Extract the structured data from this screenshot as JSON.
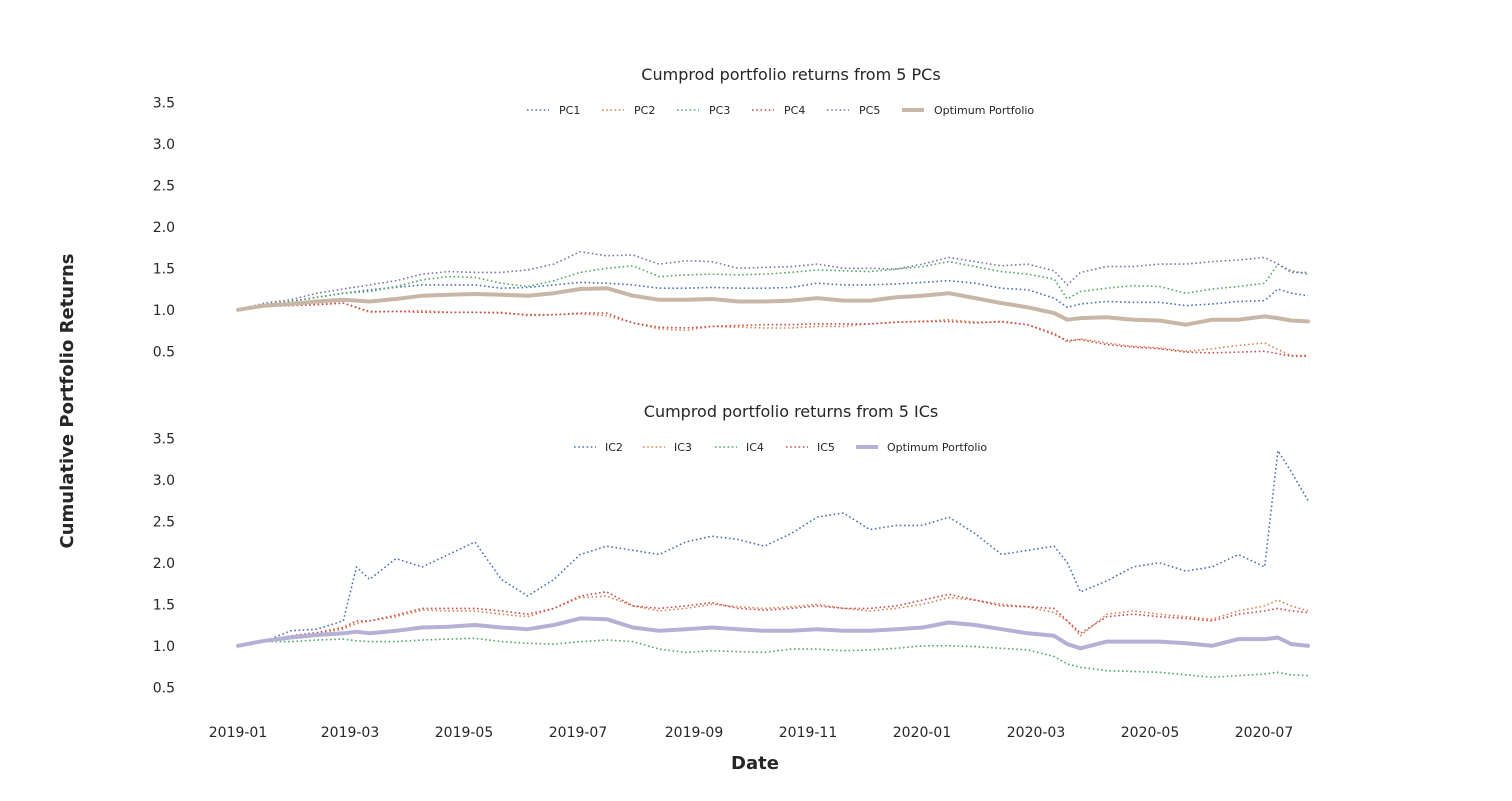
{
  "figure": {
    "ylabel": "Cumulative Portfolio Returns",
    "xlabel": "Date"
  },
  "chart_data": [
    {
      "type": "line",
      "title": "Cumprod portfolio returns from 5 PCs",
      "xlabel": "Date",
      "ylabel": "Cumulative Portfolio Returns",
      "ylim": [
        0.25,
        3.6
      ],
      "yticks": [
        0.5,
        1.0,
        1.5,
        2.0,
        2.5,
        3.0,
        3.5
      ],
      "xlim": [
        "2018-12-01",
        "2020-07-31"
      ],
      "xticks": [
        "2019-01",
        "2019-03",
        "2019-05",
        "2019-07",
        "2019-09",
        "2019-11",
        "2020-01",
        "2020-03",
        "2020-05",
        "2020-07"
      ],
      "grid": false,
      "legend_position": "top-center",
      "x": [
        "2019-01-02",
        "2019-01-16",
        "2019-01-30",
        "2019-02-13",
        "2019-02-27",
        "2019-03-13",
        "2019-03-27",
        "2019-04-10",
        "2019-04-24",
        "2019-05-08",
        "2019-05-22",
        "2019-06-05",
        "2019-06-19",
        "2019-07-03",
        "2019-07-17",
        "2019-07-31",
        "2019-08-14",
        "2019-08-28",
        "2019-09-11",
        "2019-09-25",
        "2019-10-09",
        "2019-10-23",
        "2019-11-06",
        "2019-11-20",
        "2019-12-04",
        "2019-12-18",
        "2020-01-01",
        "2020-01-15",
        "2020-01-29",
        "2020-02-12",
        "2020-02-26",
        "2020-03-11",
        "2020-03-18",
        "2020-03-25",
        "2020-04-08",
        "2020-04-22",
        "2020-05-06",
        "2020-05-20",
        "2020-06-03",
        "2020-06-17",
        "2020-07-01",
        "2020-07-08",
        "2020-07-15",
        "2020-07-24"
      ],
      "series": [
        {
          "name": "PC1",
          "style": "dotted",
          "color": "#4c72b0",
          "values": [
            1.0,
            1.06,
            1.1,
            1.15,
            1.2,
            1.24,
            1.27,
            1.3,
            1.3,
            1.3,
            1.26,
            1.27,
            1.3,
            1.33,
            1.32,
            1.3,
            1.26,
            1.26,
            1.27,
            1.26,
            1.26,
            1.27,
            1.32,
            1.3,
            1.3,
            1.31,
            1.33,
            1.35,
            1.32,
            1.26,
            1.24,
            1.14,
            1.03,
            1.07,
            1.1,
            1.09,
            1.09,
            1.05,
            1.07,
            1.1,
            1.11,
            1.25,
            1.2,
            1.17
          ]
        },
        {
          "name": "PC2",
          "style": "dotted",
          "color": "#dd8452",
          "values": [
            1.0,
            1.04,
            1.05,
            1.07,
            1.08,
            0.97,
            0.98,
            0.99,
            0.97,
            0.97,
            0.97,
            0.93,
            0.94,
            0.95,
            0.93,
            0.84,
            0.77,
            0.75,
            0.8,
            0.79,
            0.78,
            0.78,
            0.8,
            0.8,
            0.83,
            0.85,
            0.86,
            0.88,
            0.85,
            0.85,
            0.82,
            0.72,
            0.61,
            0.65,
            0.6,
            0.56,
            0.54,
            0.5,
            0.53,
            0.57,
            0.6,
            0.52,
            0.45,
            0.45
          ]
        },
        {
          "name": "PC3",
          "style": "dotted",
          "color": "#55a868",
          "values": [
            1.0,
            1.06,
            1.1,
            1.15,
            1.2,
            1.22,
            1.28,
            1.36,
            1.4,
            1.39,
            1.32,
            1.28,
            1.35,
            1.45,
            1.5,
            1.53,
            1.4,
            1.42,
            1.43,
            1.42,
            1.43,
            1.45,
            1.48,
            1.47,
            1.46,
            1.49,
            1.52,
            1.58,
            1.52,
            1.46,
            1.43,
            1.37,
            1.13,
            1.22,
            1.26,
            1.29,
            1.28,
            1.2,
            1.25,
            1.28,
            1.32,
            1.55,
            1.47,
            1.43
          ]
        },
        {
          "name": "PC4",
          "style": "dotted",
          "color": "#c44e52",
          "values": [
            1.0,
            1.04,
            1.05,
            1.06,
            1.08,
            0.98,
            0.98,
            0.97,
            0.97,
            0.97,
            0.96,
            0.94,
            0.94,
            0.96,
            0.96,
            0.84,
            0.79,
            0.78,
            0.8,
            0.81,
            0.82,
            0.82,
            0.83,
            0.83,
            0.83,
            0.85,
            0.86,
            0.86,
            0.84,
            0.86,
            0.82,
            0.7,
            0.63,
            0.64,
            0.58,
            0.55,
            0.53,
            0.49,
            0.48,
            0.49,
            0.5,
            0.47,
            0.44,
            0.44
          ]
        },
        {
          "name": "PC5",
          "style": "dotted",
          "color": "#8172b3",
          "values": [
            1.0,
            1.08,
            1.12,
            1.2,
            1.25,
            1.3,
            1.35,
            1.43,
            1.46,
            1.45,
            1.45,
            1.48,
            1.55,
            1.7,
            1.65,
            1.66,
            1.55,
            1.59,
            1.58,
            1.5,
            1.51,
            1.52,
            1.55,
            1.5,
            1.5,
            1.49,
            1.55,
            1.63,
            1.58,
            1.53,
            1.55,
            1.47,
            1.3,
            1.45,
            1.52,
            1.52,
            1.55,
            1.55,
            1.58,
            1.6,
            1.63,
            1.55,
            1.45,
            1.45
          ]
        },
        {
          "name": "Optimum Portfolio",
          "style": "solid-thick",
          "color": "#c8b7a6",
          "values": [
            1.0,
            1.05,
            1.07,
            1.1,
            1.12,
            1.1,
            1.13,
            1.17,
            1.18,
            1.19,
            1.18,
            1.17,
            1.2,
            1.25,
            1.26,
            1.17,
            1.12,
            1.12,
            1.13,
            1.1,
            1.1,
            1.11,
            1.14,
            1.11,
            1.11,
            1.15,
            1.17,
            1.2,
            1.14,
            1.08,
            1.03,
            0.96,
            0.88,
            0.9,
            0.91,
            0.88,
            0.87,
            0.82,
            0.88,
            0.88,
            0.92,
            0.9,
            0.87,
            0.86
          ]
        }
      ]
    },
    {
      "type": "line",
      "title": "Cumprod portfolio returns from 5 ICs",
      "xlabel": "Date",
      "ylabel": "Cumulative Portfolio Returns",
      "ylim": [
        0.25,
        3.6
      ],
      "yticks": [
        0.5,
        1.0,
        1.5,
        2.0,
        2.5,
        3.0,
        3.5
      ],
      "xlim": [
        "2018-12-01",
        "2020-07-31"
      ],
      "xticks": [
        "2019-01",
        "2019-03",
        "2019-05",
        "2019-07",
        "2019-09",
        "2019-11",
        "2020-01",
        "2020-03",
        "2020-05",
        "2020-07"
      ],
      "grid": false,
      "legend_position": "top-center",
      "x": [
        "2019-01-02",
        "2019-01-16",
        "2019-01-30",
        "2019-02-13",
        "2019-02-27",
        "2019-03-06",
        "2019-03-13",
        "2019-03-27",
        "2019-04-10",
        "2019-04-24",
        "2019-05-08",
        "2019-05-22",
        "2019-06-05",
        "2019-06-19",
        "2019-07-03",
        "2019-07-17",
        "2019-07-31",
        "2019-08-14",
        "2019-08-28",
        "2019-09-11",
        "2019-09-25",
        "2019-10-09",
        "2019-10-23",
        "2019-11-06",
        "2019-11-20",
        "2019-12-04",
        "2019-12-18",
        "2020-01-01",
        "2020-01-15",
        "2020-01-29",
        "2020-02-12",
        "2020-02-26",
        "2020-03-11",
        "2020-03-18",
        "2020-03-25",
        "2020-04-08",
        "2020-04-22",
        "2020-05-06",
        "2020-05-20",
        "2020-06-03",
        "2020-06-17",
        "2020-07-01",
        "2020-07-08",
        "2020-07-15",
        "2020-07-24"
      ],
      "series": [
        {
          "name": "IC2",
          "style": "dotted",
          "color": "#4c72b0",
          "values": [
            1.0,
            1.05,
            1.18,
            1.2,
            1.3,
            1.95,
            1.8,
            2.05,
            1.95,
            2.1,
            2.25,
            1.8,
            1.6,
            1.8,
            2.1,
            2.2,
            2.15,
            2.1,
            2.25,
            2.32,
            2.28,
            2.2,
            2.35,
            2.55,
            2.6,
            2.4,
            2.45,
            2.45,
            2.55,
            2.35,
            2.1,
            2.15,
            2.2,
            2.0,
            1.65,
            1.78,
            1.95,
            2.0,
            1.9,
            1.95,
            2.1,
            1.95,
            3.35,
            3.1,
            2.75
          ]
        },
        {
          "name": "IC3",
          "style": "dotted",
          "color": "#dd8452",
          "values": [
            1.0,
            1.05,
            1.1,
            1.15,
            1.2,
            1.27,
            1.3,
            1.35,
            1.43,
            1.42,
            1.42,
            1.38,
            1.35,
            1.45,
            1.58,
            1.6,
            1.48,
            1.42,
            1.45,
            1.5,
            1.47,
            1.45,
            1.47,
            1.5,
            1.45,
            1.42,
            1.45,
            1.5,
            1.58,
            1.55,
            1.5,
            1.47,
            1.4,
            1.3,
            1.12,
            1.38,
            1.42,
            1.38,
            1.35,
            1.32,
            1.42,
            1.48,
            1.55,
            1.48,
            1.42
          ]
        },
        {
          "name": "IC4",
          "style": "dotted",
          "color": "#55a868",
          "values": [
            1.0,
            1.05,
            1.05,
            1.07,
            1.08,
            1.06,
            1.05,
            1.05,
            1.07,
            1.08,
            1.09,
            1.05,
            1.03,
            1.02,
            1.05,
            1.07,
            1.05,
            0.96,
            0.92,
            0.94,
            0.93,
            0.92,
            0.96,
            0.96,
            0.94,
            0.95,
            0.97,
            1.0,
            1.0,
            0.99,
            0.97,
            0.95,
            0.87,
            0.78,
            0.74,
            0.7,
            0.69,
            0.68,
            0.65,
            0.62,
            0.64,
            0.66,
            0.68,
            0.65,
            0.64
          ]
        },
        {
          "name": "IC5",
          "style": "dotted",
          "color": "#c44e52",
          "values": [
            1.0,
            1.06,
            1.12,
            1.16,
            1.22,
            1.3,
            1.3,
            1.37,
            1.45,
            1.45,
            1.45,
            1.42,
            1.38,
            1.45,
            1.6,
            1.65,
            1.48,
            1.45,
            1.48,
            1.52,
            1.45,
            1.43,
            1.45,
            1.48,
            1.45,
            1.45,
            1.48,
            1.55,
            1.62,
            1.55,
            1.48,
            1.47,
            1.45,
            1.3,
            1.15,
            1.35,
            1.38,
            1.35,
            1.33,
            1.3,
            1.38,
            1.42,
            1.45,
            1.42,
            1.4
          ]
        },
        {
          "name": "Optimum Portfolio",
          "style": "solid-thick",
          "color": "#b4b0d6",
          "values": [
            1.0,
            1.06,
            1.1,
            1.13,
            1.15,
            1.17,
            1.15,
            1.18,
            1.22,
            1.23,
            1.25,
            1.22,
            1.2,
            1.25,
            1.33,
            1.32,
            1.22,
            1.18,
            1.2,
            1.22,
            1.2,
            1.18,
            1.18,
            1.2,
            1.18,
            1.18,
            1.2,
            1.22,
            1.28,
            1.25,
            1.2,
            1.15,
            1.12,
            1.02,
            0.97,
            1.05,
            1.05,
            1.05,
            1.03,
            1.0,
            1.08,
            1.08,
            1.1,
            1.02,
            1.0
          ]
        }
      ]
    }
  ]
}
